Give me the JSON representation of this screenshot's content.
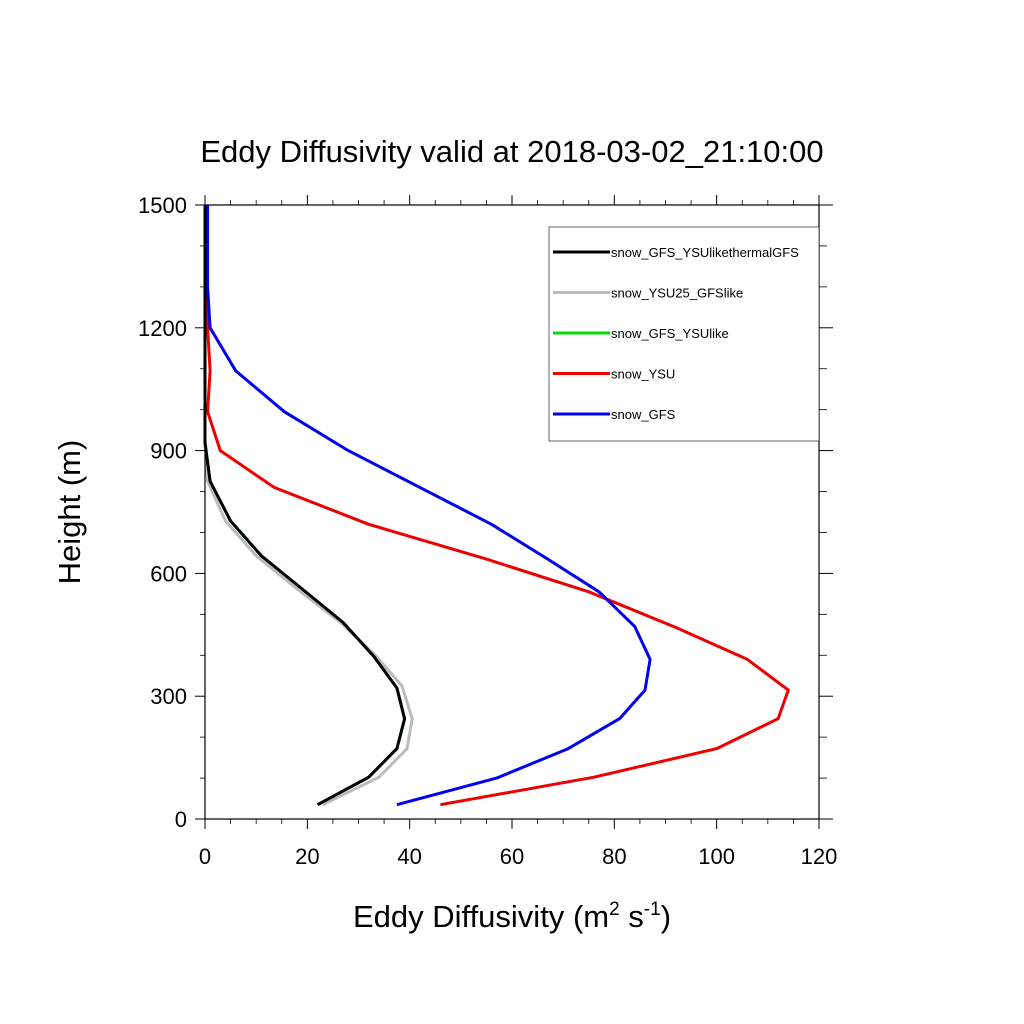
{
  "chart_data": {
    "type": "line",
    "title": "Eddy Diffusivity valid at 2018-03-02_21:10:00",
    "xlabel": "Eddy Diffusivity",
    "xlabel_unit_open": "(m",
    "xlabel_unit_sup1": "2",
    "xlabel_unit_mid": " s",
    "xlabel_unit_sup2": "-1",
    "xlabel_unit_close": ")",
    "ylabel": "Height (m)",
    "xlim": [
      0,
      120
    ],
    "ylim": [
      0,
      1500
    ],
    "xticks": [
      "0",
      "20",
      "40",
      "60",
      "80",
      "100",
      "120"
    ],
    "yticks": [
      "0",
      "300",
      "600",
      "900",
      "1200",
      "1500"
    ],
    "legend_position": "top-right",
    "grid": false,
    "series": [
      {
        "name": "snow_GFS_YSUlikethermalGFS",
        "color": "#000000",
        "points": [
          [
            22,
            35
          ],
          [
            32,
            102
          ],
          [
            37.5,
            172
          ],
          [
            39,
            245
          ],
          [
            37.5,
            320
          ],
          [
            33,
            397
          ],
          [
            27,
            480
          ],
          [
            19,
            562
          ],
          [
            11,
            643
          ],
          [
            5,
            728
          ],
          [
            1,
            825
          ],
          [
            0,
            920
          ],
          [
            0,
            1000
          ],
          [
            0,
            1100
          ],
          [
            0,
            1200
          ],
          [
            0,
            1300
          ],
          [
            0,
            1400
          ],
          [
            0,
            1500
          ]
        ]
      },
      {
        "name": "snow_YSU25_GFSlike",
        "color": "#bbbbbb",
        "points": [
          [
            23,
            35
          ],
          [
            34,
            102
          ],
          [
            39.5,
            172
          ],
          [
            40.5,
            245
          ],
          [
            38.5,
            325
          ],
          [
            33.5,
            397
          ],
          [
            26.5,
            480
          ],
          [
            18,
            562
          ],
          [
            10,
            643
          ],
          [
            4,
            728
          ],
          [
            0.5,
            825
          ],
          [
            0,
            920
          ],
          [
            0,
            1000
          ],
          [
            0,
            1100
          ],
          [
            0,
            1200
          ],
          [
            0,
            1300
          ],
          [
            0,
            1400
          ],
          [
            0,
            1500
          ]
        ]
      },
      {
        "name": "snow_GFS_YSUlike",
        "color": "#00dd00",
        "points": [
          [
            22,
            35
          ],
          [
            32,
            102
          ],
          [
            37.5,
            172
          ],
          [
            39,
            245
          ],
          [
            37.5,
            320
          ],
          [
            33,
            397
          ],
          [
            27,
            480
          ],
          [
            19,
            562
          ],
          [
            11,
            643
          ],
          [
            5,
            728
          ],
          [
            1,
            825
          ],
          [
            0,
            920
          ],
          [
            0,
            1000
          ],
          [
            0,
            1100
          ],
          [
            0,
            1200
          ],
          [
            0,
            1300
          ],
          [
            0,
            1400
          ],
          [
            0,
            1500
          ]
        ]
      },
      {
        "name": "snow_YSU",
        "color": "#ee0000",
        "points": [
          [
            46,
            35
          ],
          [
            76,
            102
          ],
          [
            100,
            172
          ],
          [
            112,
            245
          ],
          [
            114,
            315
          ],
          [
            106,
            390
          ],
          [
            92,
            468
          ],
          [
            75,
            555
          ],
          [
            55,
            635
          ],
          [
            32,
            720
          ],
          [
            13.5,
            810
          ],
          [
            3,
            900
          ],
          [
            0.5,
            995
          ],
          [
            1,
            1095
          ],
          [
            0.5,
            1200
          ],
          [
            0,
            1300
          ],
          [
            0,
            1400
          ],
          [
            0,
            1500
          ]
        ]
      },
      {
        "name": "snow_GFS",
        "color": "#0000ee",
        "points": [
          [
            37.5,
            35
          ],
          [
            57,
            100
          ],
          [
            71,
            172
          ],
          [
            81,
            245
          ],
          [
            86,
            315
          ],
          [
            87,
            390
          ],
          [
            84,
            470
          ],
          [
            77,
            555
          ],
          [
            67,
            635
          ],
          [
            56,
            720
          ],
          [
            28,
            900
          ],
          [
            15.5,
            995
          ],
          [
            6,
            1095
          ],
          [
            1,
            1200
          ],
          [
            0.5,
            1300
          ],
          [
            0.5,
            1400
          ],
          [
            0.5,
            1500
          ]
        ]
      }
    ]
  }
}
